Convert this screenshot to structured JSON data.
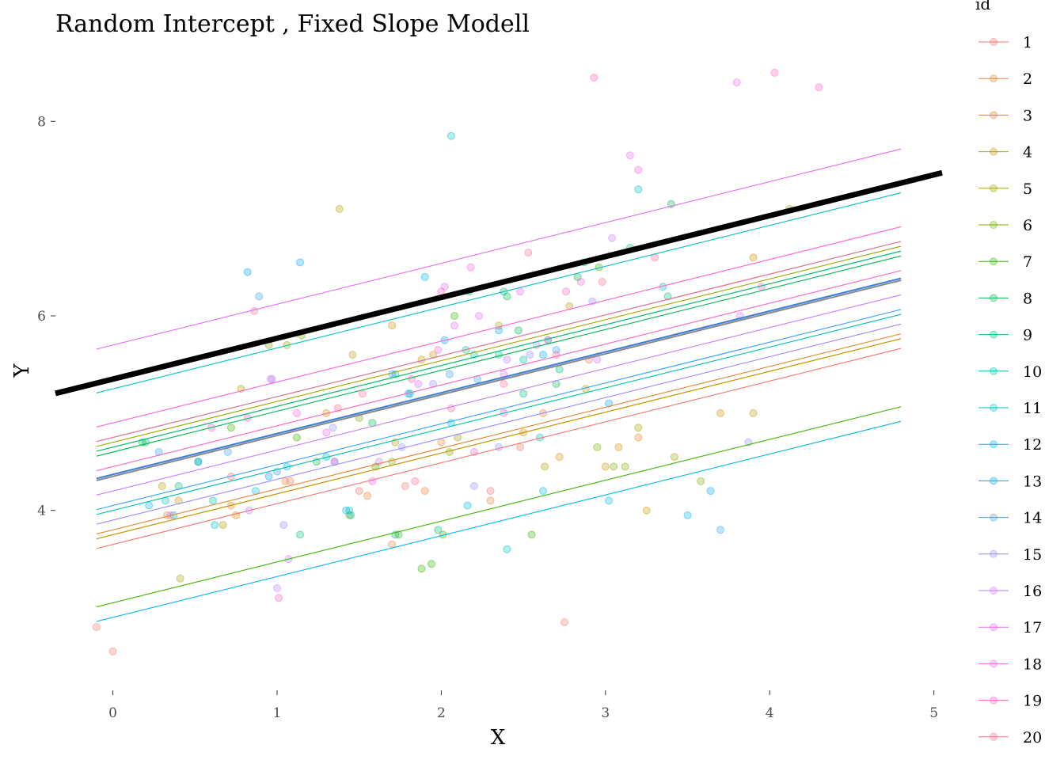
{
  "chart_data": {
    "type": "scatter",
    "title": "Random Intercept , Fixed Slope Modell",
    "xlabel": "X",
    "ylabel": "Y",
    "xlim": [
      -0.35,
      5.05
    ],
    "ylim": [
      2.15,
      8.8
    ],
    "xticks": [
      0,
      1,
      2,
      3,
      4,
      5
    ],
    "yticks": [
      4,
      6,
      8
    ],
    "grid": false,
    "legend": {
      "title": "id",
      "position": "right"
    },
    "fixed_slope": 0.42,
    "line_x_range": [
      -0.1,
      4.8
    ],
    "overall_line": {
      "intercept": 5.35,
      "slope": 0.42,
      "color": "#000000",
      "x_range": [
        -0.35,
        5.05
      ]
    },
    "mean_lines": [
      {
        "intercept": 4.37,
        "color": "#3a7fd6"
      },
      {
        "intercept": 4.35,
        "color": "#888888"
      }
    ],
    "series": [
      {
        "name": "1",
        "color": "#F8766D",
        "intercept": 3.65,
        "points": [
          [
            -0.1,
            2.8
          ],
          [
            0.0,
            2.55
          ],
          [
            0.72,
            4.35
          ],
          [
            1.08,
            4.3
          ],
          [
            1.5,
            4.2
          ],
          [
            1.78,
            4.25
          ],
          [
            2.3,
            4.2
          ],
          [
            2.48,
            4.65
          ],
          [
            2.75,
            2.85
          ],
          [
            2.9,
            5.55
          ]
        ]
      },
      {
        "name": "2",
        "color": "#EA8331",
        "intercept": 3.8,
        "points": [
          [
            0.33,
            3.95
          ],
          [
            0.72,
            4.05
          ],
          [
            1.05,
            4.3
          ],
          [
            1.55,
            4.15
          ],
          [
            1.7,
            3.65
          ],
          [
            1.9,
            4.2
          ],
          [
            2.0,
            4.7
          ],
          [
            2.3,
            4.1
          ],
          [
            2.62,
            5.0
          ],
          [
            3.2,
            4.75
          ]
        ]
      },
      {
        "name": "3",
        "color": "#D89000",
        "intercept": 3.75,
        "points": [
          [
            0.4,
            4.1
          ],
          [
            0.75,
            3.95
          ],
          [
            1.3,
            5.0
          ],
          [
            1.7,
            5.9
          ],
          [
            1.95,
            5.6
          ],
          [
            2.5,
            4.8
          ],
          [
            2.72,
            4.55
          ],
          [
            3.08,
            4.65
          ],
          [
            3.7,
            5.0
          ],
          [
            3.9,
            6.6
          ]
        ]
      },
      {
        "name": "4",
        "color": "#C09B00",
        "intercept": 3.75,
        "points": [
          [
            0.3,
            4.25
          ],
          [
            0.78,
            5.25
          ],
          [
            1.38,
            7.1
          ],
          [
            1.46,
            5.6
          ],
          [
            1.88,
            5.55
          ],
          [
            2.35,
            5.9
          ],
          [
            2.78,
            6.1
          ],
          [
            3.0,
            4.45
          ],
          [
            3.25,
            4.0
          ],
          [
            3.9,
            5.0
          ]
        ]
      },
      {
        "name": "5",
        "color": "#A3A500",
        "intercept": 4.7,
        "points": [
          [
            0.41,
            3.3
          ],
          [
            0.67,
            3.85
          ],
          [
            1.06,
            5.7
          ],
          [
            1.72,
            4.7
          ],
          [
            2.1,
            4.75
          ],
          [
            2.63,
            4.45
          ],
          [
            2.88,
            5.25
          ],
          [
            3.2,
            4.85
          ],
          [
            3.42,
            4.55
          ],
          [
            4.12,
            7.1
          ]
        ]
      },
      {
        "name": "6",
        "color": "#7CAE00",
        "intercept": 4.65,
        "points": [
          [
            0.95,
            5.7
          ],
          [
            1.15,
            5.8
          ],
          [
            1.44,
            3.95
          ],
          [
            1.5,
            4.95
          ],
          [
            1.7,
            4.5
          ],
          [
            2.05,
            4.6
          ],
          [
            2.95,
            4.65
          ],
          [
            3.05,
            4.45
          ],
          [
            3.12,
            4.45
          ],
          [
            3.58,
            4.3
          ]
        ]
      },
      {
        "name": "7",
        "color": "#39B600",
        "intercept": 3.05,
        "points": [
          [
            0.72,
            4.85
          ],
          [
            1.12,
            4.75
          ],
          [
            1.6,
            4.45
          ],
          [
            1.74,
            3.75
          ],
          [
            1.88,
            3.4
          ],
          [
            1.94,
            3.45
          ],
          [
            2.01,
            3.75
          ],
          [
            2.08,
            6.0
          ],
          [
            2.55,
            3.75
          ],
          [
            2.96,
            6.5
          ]
        ]
      },
      {
        "name": "8",
        "color": "#00BB4E",
        "intercept": 4.6,
        "points": [
          [
            0.18,
            4.7
          ],
          [
            0.52,
            4.5
          ],
          [
            1.24,
            4.5
          ],
          [
            1.58,
            4.9
          ],
          [
            2.17,
            6.25
          ],
          [
            2.4,
            6.2
          ],
          [
            2.47,
            5.85
          ],
          [
            2.7,
            5.3
          ],
          [
            2.83,
            6.4
          ],
          [
            3.4,
            7.15
          ]
        ]
      },
      {
        "name": "9",
        "color": "#00BF7D",
        "intercept": 4.65,
        "points": [
          [
            0.2,
            4.7
          ],
          [
            0.4,
            4.25
          ],
          [
            1.14,
            3.75
          ],
          [
            1.72,
            3.75
          ],
          [
            1.98,
            3.8
          ],
          [
            2.38,
            6.25
          ],
          [
            2.5,
            5.2
          ],
          [
            2.72,
            5.45
          ],
          [
            3.15,
            6.7
          ],
          [
            3.38,
            6.2
          ]
        ]
      },
      {
        "name": "10",
        "color": "#00C1A3",
        "intercept": 4.0,
        "points": [
          [
            0.37,
            3.95
          ],
          [
            0.61,
            4.1
          ],
          [
            1.44,
            4.0
          ],
          [
            1.81,
            5.2
          ],
          [
            2.15,
            5.65
          ],
          [
            2.35,
            5.6
          ],
          [
            2.5,
            5.55
          ],
          [
            2.65,
            5.75
          ],
          [
            2.87,
            6.55
          ],
          [
            3.35,
            6.3
          ]
        ]
      },
      {
        "name": "11",
        "color": "#00BFC4",
        "intercept": 5.25,
        "points": [
          [
            0.32,
            4.1
          ],
          [
            0.62,
            3.85
          ],
          [
            1.3,
            4.55
          ],
          [
            1.45,
            3.95
          ],
          [
            1.72,
            5.4
          ],
          [
            2.06,
            7.85
          ],
          [
            2.2,
            5.6
          ],
          [
            2.4,
            3.6
          ],
          [
            2.6,
            4.75
          ],
          [
            3.2,
            7.3
          ]
        ]
      },
      {
        "name": "12",
        "color": "#00B8E7",
        "intercept": 2.9,
        "points": [
          [
            0.22,
            4.05
          ],
          [
            0.87,
            4.2
          ],
          [
            1.06,
            4.45
          ],
          [
            1.42,
            4.0
          ],
          [
            1.9,
            6.4
          ],
          [
            2.06,
            4.9
          ],
          [
            2.16,
            4.05
          ],
          [
            2.62,
            4.2
          ],
          [
            3.02,
            4.1
          ],
          [
            3.5,
            3.95
          ]
        ]
      },
      {
        "name": "13",
        "color": "#00A9FF",
        "intercept": 4.75,
        "points": [
          [
            0.52,
            4.5
          ],
          [
            0.82,
            6.45
          ],
          [
            0.95,
            4.35
          ],
          [
            1.14,
            6.55
          ],
          [
            1.8,
            5.2
          ],
          [
            2.02,
            5.75
          ],
          [
            2.35,
            5.85
          ],
          [
            2.62,
            5.6
          ],
          [
            3.02,
            5.1
          ],
          [
            3.64,
            4.2
          ]
        ]
      },
      {
        "name": "14",
        "color": "#35A2FF",
        "intercept": 4.05,
        "points": [
          [
            0.28,
            4.6
          ],
          [
            0.7,
            4.6
          ],
          [
            0.89,
            6.2
          ],
          [
            1.0,
            4.4
          ],
          [
            1.35,
            4.5
          ],
          [
            1.7,
            5.4
          ],
          [
            2.05,
            5.4
          ],
          [
            2.22,
            5.35
          ],
          [
            2.7,
            5.65
          ],
          [
            3.7,
            3.8
          ]
        ]
      },
      {
        "name": "15",
        "color": "#9590FF",
        "intercept": 3.9,
        "points": [
          [
            0.97,
            5.35
          ],
          [
            1.04,
            3.85
          ],
          [
            1.34,
            4.85
          ],
          [
            1.76,
            4.65
          ],
          [
            1.95,
            5.3
          ],
          [
            2.2,
            4.25
          ],
          [
            2.35,
            4.65
          ],
          [
            2.54,
            5.6
          ],
          [
            2.92,
            6.15
          ],
          [
            3.87,
            4.7
          ]
        ]
      },
      {
        "name": "16",
        "color": "#C77CFF",
        "intercept": 4.2,
        "points": [
          [
            0.35,
            3.95
          ],
          [
            0.83,
            4.0
          ],
          [
            1.07,
            3.5
          ],
          [
            1.0,
            3.2
          ],
          [
            1.62,
            4.5
          ],
          [
            2.4,
            5.55
          ],
          [
            2.58,
            5.7
          ],
          [
            2.95,
            5.55
          ],
          [
            3.04,
            6.8
          ],
          [
            3.82,
            6.0
          ]
        ]
      },
      {
        "name": "17",
        "color": "#E76BF3",
        "intercept": 5.7,
        "points": [
          [
            0.96,
            5.35
          ],
          [
            1.3,
            4.8
          ],
          [
            1.86,
            5.3
          ],
          [
            2.02,
            6.3
          ],
          [
            2.08,
            5.9
          ],
          [
            2.23,
            6.0
          ],
          [
            2.38,
            5.4
          ],
          [
            2.48,
            6.25
          ],
          [
            3.15,
            7.65
          ],
          [
            3.8,
            8.4
          ]
        ]
      },
      {
        "name": "18",
        "color": "#FA62DB",
        "intercept": 4.9,
        "points": [
          [
            0.6,
            4.85
          ],
          [
            0.82,
            4.95
          ],
          [
            1.12,
            5.0
          ],
          [
            1.58,
            4.3
          ],
          [
            1.98,
            5.65
          ],
          [
            2.18,
            6.5
          ],
          [
            2.65,
            5.75
          ],
          [
            2.85,
            6.35
          ],
          [
            3.2,
            7.5
          ],
          [
            3.95,
            6.3
          ]
        ]
      },
      {
        "name": "19",
        "color": "#FF62BC",
        "intercept": 4.45,
        "points": [
          [
            1.01,
            3.1
          ],
          [
            1.35,
            4.5
          ],
          [
            1.82,
            5.35
          ],
          [
            2.0,
            6.25
          ],
          [
            2.2,
            4.6
          ],
          [
            2.38,
            5.0
          ],
          [
            2.76,
            6.25
          ],
          [
            2.93,
            8.45
          ],
          [
            4.03,
            8.5
          ],
          [
            4.3,
            8.35
          ]
        ]
      },
      {
        "name": "20",
        "color": "#FF6C91",
        "intercept": 4.75,
        "points": [
          [
            0.86,
            6.05
          ],
          [
            1.37,
            5.05
          ],
          [
            1.52,
            5.2
          ],
          [
            1.84,
            4.3
          ],
          [
            2.06,
            5.05
          ],
          [
            2.38,
            5.3
          ],
          [
            2.53,
            6.65
          ],
          [
            2.7,
            5.6
          ],
          [
            2.98,
            6.35
          ],
          [
            3.3,
            6.6
          ]
        ]
      }
    ]
  }
}
